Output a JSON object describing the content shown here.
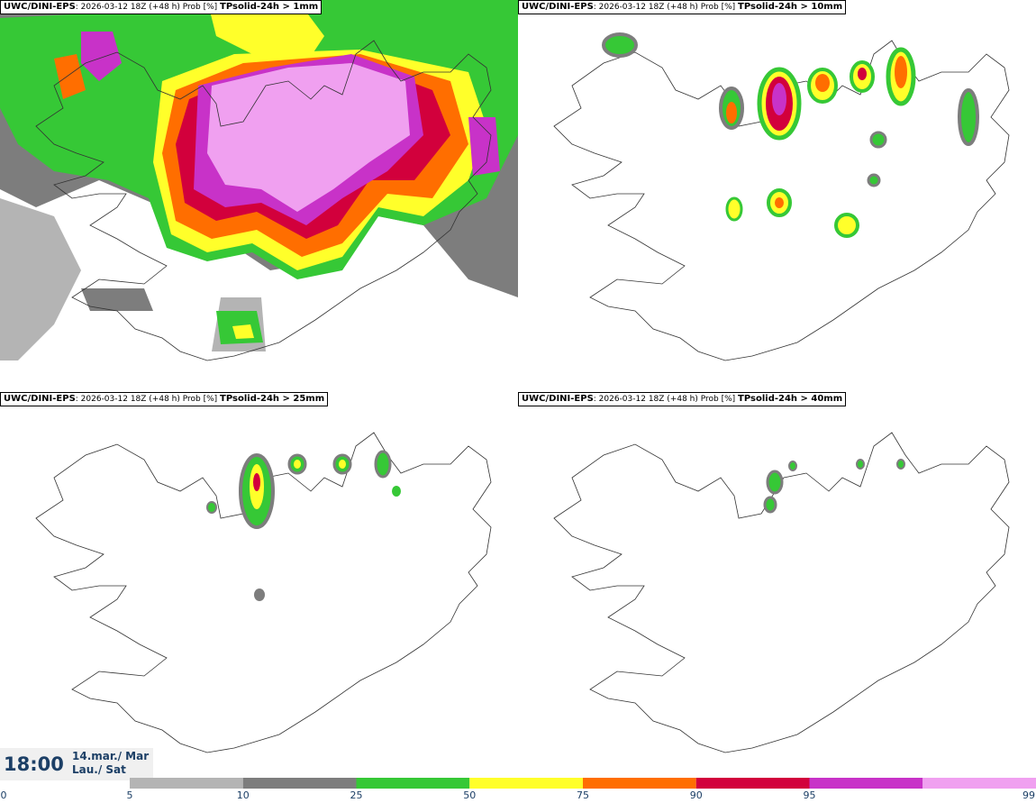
{
  "panels": [
    {
      "model": "UWC/DINI-EPS",
      "run": ": 2026-03-12 18Z (+48 h) Prob [%]",
      "param": "TPsolid-24h > 1mm"
    },
    {
      "model": "UWC/DINI-EPS",
      "run": ": 2026-03-12 18Z (+48 h) Prob [%]",
      "param": "TPsolid-24h > 10mm"
    },
    {
      "model": "UWC/DINI-EPS",
      "run": ": 2026-03-12 18Z (+48 h) Prob [%]",
      "param": "TPsolid-24h > 25mm"
    },
    {
      "model": "UWC/DINI-EPS",
      "run": ": 2026-03-12 18Z (+48 h) Prob [%]",
      "param": "TPsolid-24h > 40mm"
    }
  ],
  "valid": {
    "time": "18:00",
    "date_line1": "14.mar./ Mar",
    "date_line2": "Lau./ Sat"
  },
  "colorbar": {
    "ticks": [
      "0",
      "5",
      "10",
      "25",
      "50",
      "75",
      "90",
      "95",
      "99"
    ],
    "colors": [
      "#b4b4b4",
      "#7d7d7d",
      "#36c836",
      "#ffff2a",
      "#ff6e00",
      "#d2003c",
      "#c832c8",
      "#f0a0f0"
    ]
  }
}
